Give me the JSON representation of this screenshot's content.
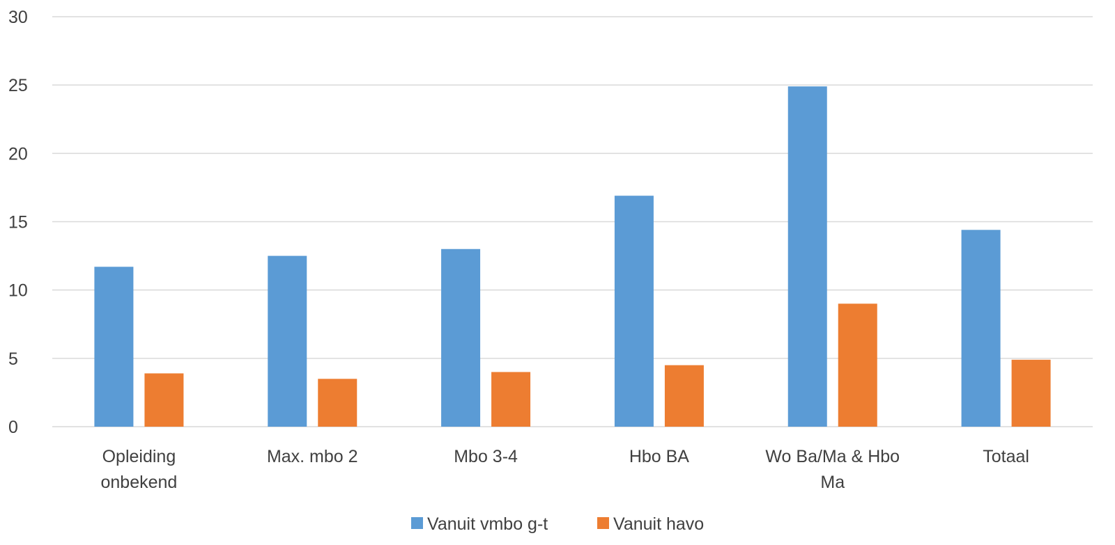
{
  "chart_data": {
    "type": "bar",
    "categories": [
      [
        "Opleiding",
        "onbekend"
      ],
      [
        "Max. mbo 2"
      ],
      [
        "Mbo 3-4"
      ],
      [
        "Hbo BA"
      ],
      [
        "Wo Ba/Ma & Hbo",
        "Ma"
      ],
      [
        "Totaal"
      ]
    ],
    "series": [
      {
        "name": "Vanuit vmbo g-t",
        "color": "#5B9BD5",
        "values": [
          11.7,
          12.5,
          13.0,
          16.9,
          24.9,
          14.4
        ]
      },
      {
        "name": "Vanuit havo",
        "color": "#ED7D31",
        "values": [
          3.9,
          3.5,
          4.0,
          4.5,
          9.0,
          4.9
        ]
      }
    ],
    "ylim": [
      0,
      30
    ],
    "yticks": [
      "0",
      "5",
      "10",
      "15",
      "20",
      "25",
      "30"
    ],
    "grid": true,
    "gridColor": "#D9D9D9",
    "legend": "bottom"
  }
}
